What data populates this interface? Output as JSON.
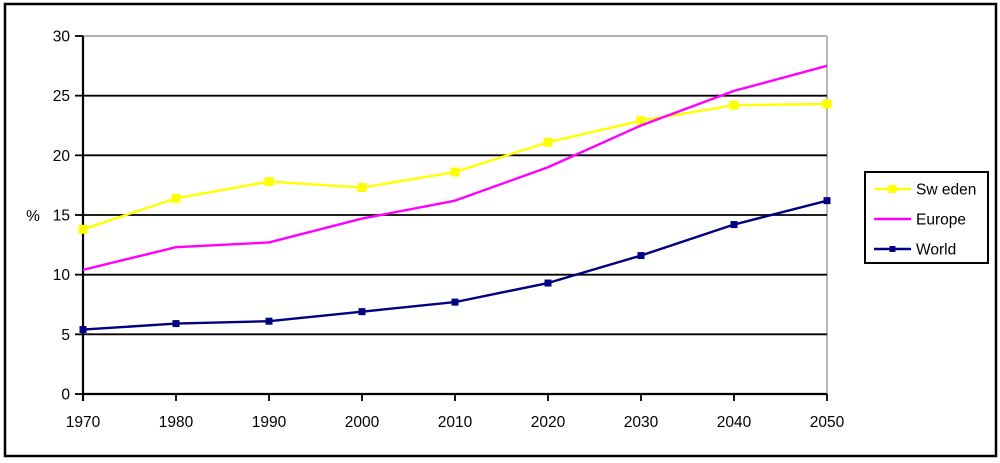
{
  "chart_data": {
    "type": "line",
    "x": [
      1970,
      1980,
      1990,
      2000,
      2010,
      2020,
      2030,
      2040,
      2050
    ],
    "series": [
      {
        "name": "Sweden",
        "legend_label": "Sw eden",
        "color": "#ffff00",
        "marker": "square",
        "marker_size": 8,
        "values": [
          13.8,
          16.4,
          17.8,
          17.3,
          18.6,
          21.1,
          22.9,
          24.2,
          24.3
        ]
      },
      {
        "name": "Europe",
        "legend_label": "Europe",
        "color": "#ff00ff",
        "marker": "none",
        "marker_size": 0,
        "values": [
          10.4,
          12.3,
          12.7,
          14.7,
          16.2,
          19.0,
          22.5,
          25.4,
          27.5
        ]
      },
      {
        "name": "World",
        "legend_label": "World",
        "color": "#000080",
        "marker": "square",
        "marker_size": 6,
        "values": [
          5.4,
          5.9,
          6.1,
          6.9,
          7.7,
          9.3,
          11.6,
          14.2,
          16.2
        ]
      }
    ],
    "title": "",
    "xlabel": "",
    "ylabel": "%",
    "ylim": [
      0,
      30
    ],
    "yticks": [
      0,
      5,
      10,
      15,
      20,
      25,
      30
    ],
    "xticks": [
      "1970",
      "1980",
      "1990",
      "2000",
      "2010",
      "2020",
      "2030",
      "2040",
      "2050"
    ],
    "grid": "horizontal",
    "legend_position": "right-outside",
    "colors": {
      "axis": "#000000",
      "gridline": "#000000",
      "plot_border_gray": "#999999",
      "background": "#ffffff",
      "outer_border": "#000000"
    }
  }
}
